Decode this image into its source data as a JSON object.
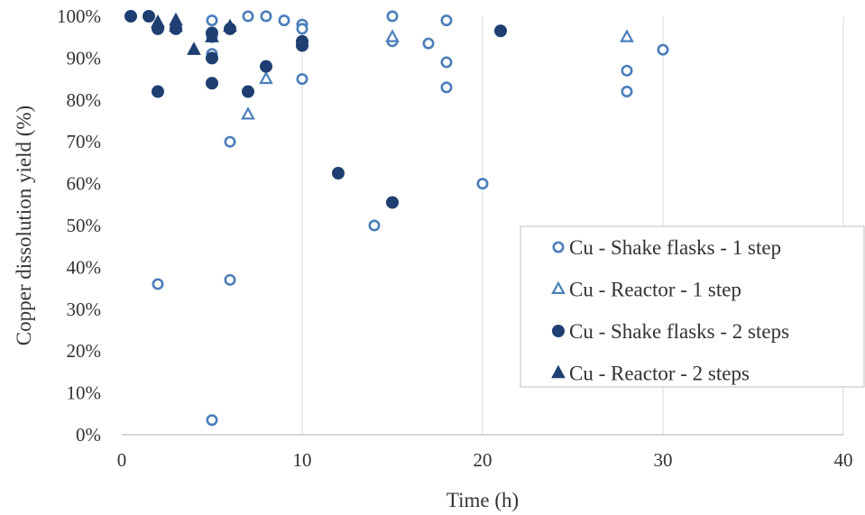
{
  "chart_data": {
    "type": "scatter",
    "title": "",
    "xlabel": "Time (h)",
    "ylabel": "Copper dissolution yield (%)",
    "xlim": [
      0,
      40
    ],
    "ylim": [
      0,
      100
    ],
    "x_ticks": [
      0,
      10,
      20,
      30,
      40
    ],
    "y_ticks": [
      0,
      10,
      20,
      30,
      40,
      50,
      60,
      70,
      80,
      90,
      100
    ],
    "y_tick_format": "percent",
    "grid": "vertical lines only",
    "legend_position": "center-right",
    "series": [
      {
        "name": "Cu - Shake flasks - 1 step",
        "marker": "open-circle",
        "color": "#4A7EBB",
        "points": [
          [
            2,
            36
          ],
          [
            5,
            99
          ],
          [
            5,
            95
          ],
          [
            5,
            91
          ],
          [
            5,
            90
          ],
          [
            5,
            3.5
          ],
          [
            6,
            70
          ],
          [
            6,
            37
          ],
          [
            7,
            100
          ],
          [
            8,
            100
          ],
          [
            9,
            99
          ],
          [
            10,
            98
          ],
          [
            10,
            97
          ],
          [
            10,
            85
          ],
          [
            14,
            50
          ],
          [
            15,
            100
          ],
          [
            15,
            94
          ],
          [
            17,
            93.5
          ],
          [
            18,
            99
          ],
          [
            18,
            89
          ],
          [
            18,
            83
          ],
          [
            20,
            60
          ],
          [
            28,
            87
          ],
          [
            28,
            82
          ],
          [
            30,
            92
          ]
        ]
      },
      {
        "name": "Cu - Reactor - 1 step",
        "marker": "open-triangle",
        "color": "#4A7EBB",
        "points": [
          [
            2,
            98.5
          ],
          [
            7,
            76.5
          ],
          [
            8,
            85
          ],
          [
            15,
            95
          ],
          [
            28,
            95
          ]
        ]
      },
      {
        "name": "Cu - Shake flasks - 2 steps",
        "marker": "filled-circle",
        "color": "#1F3F73",
        "points": [
          [
            0.5,
            100
          ],
          [
            1.5,
            100
          ],
          [
            2,
            97
          ],
          [
            2,
            82
          ],
          [
            3,
            97
          ],
          [
            5,
            96
          ],
          [
            5,
            90
          ],
          [
            5,
            84
          ],
          [
            6,
            97
          ],
          [
            7,
            82
          ],
          [
            8,
            88
          ],
          [
            10,
            94
          ],
          [
            10,
            93
          ],
          [
            12,
            62.5
          ],
          [
            15,
            55.5
          ],
          [
            21,
            96.5
          ]
        ]
      },
      {
        "name": "Cu - Reactor - 2 steps",
        "marker": "filled-triangle",
        "color": "#1F3F73",
        "points": [
          [
            2,
            98.5
          ],
          [
            3,
            99
          ],
          [
            3,
            97.5
          ],
          [
            4,
            92
          ],
          [
            5,
            95
          ],
          [
            6,
            97.5
          ]
        ]
      }
    ]
  }
}
